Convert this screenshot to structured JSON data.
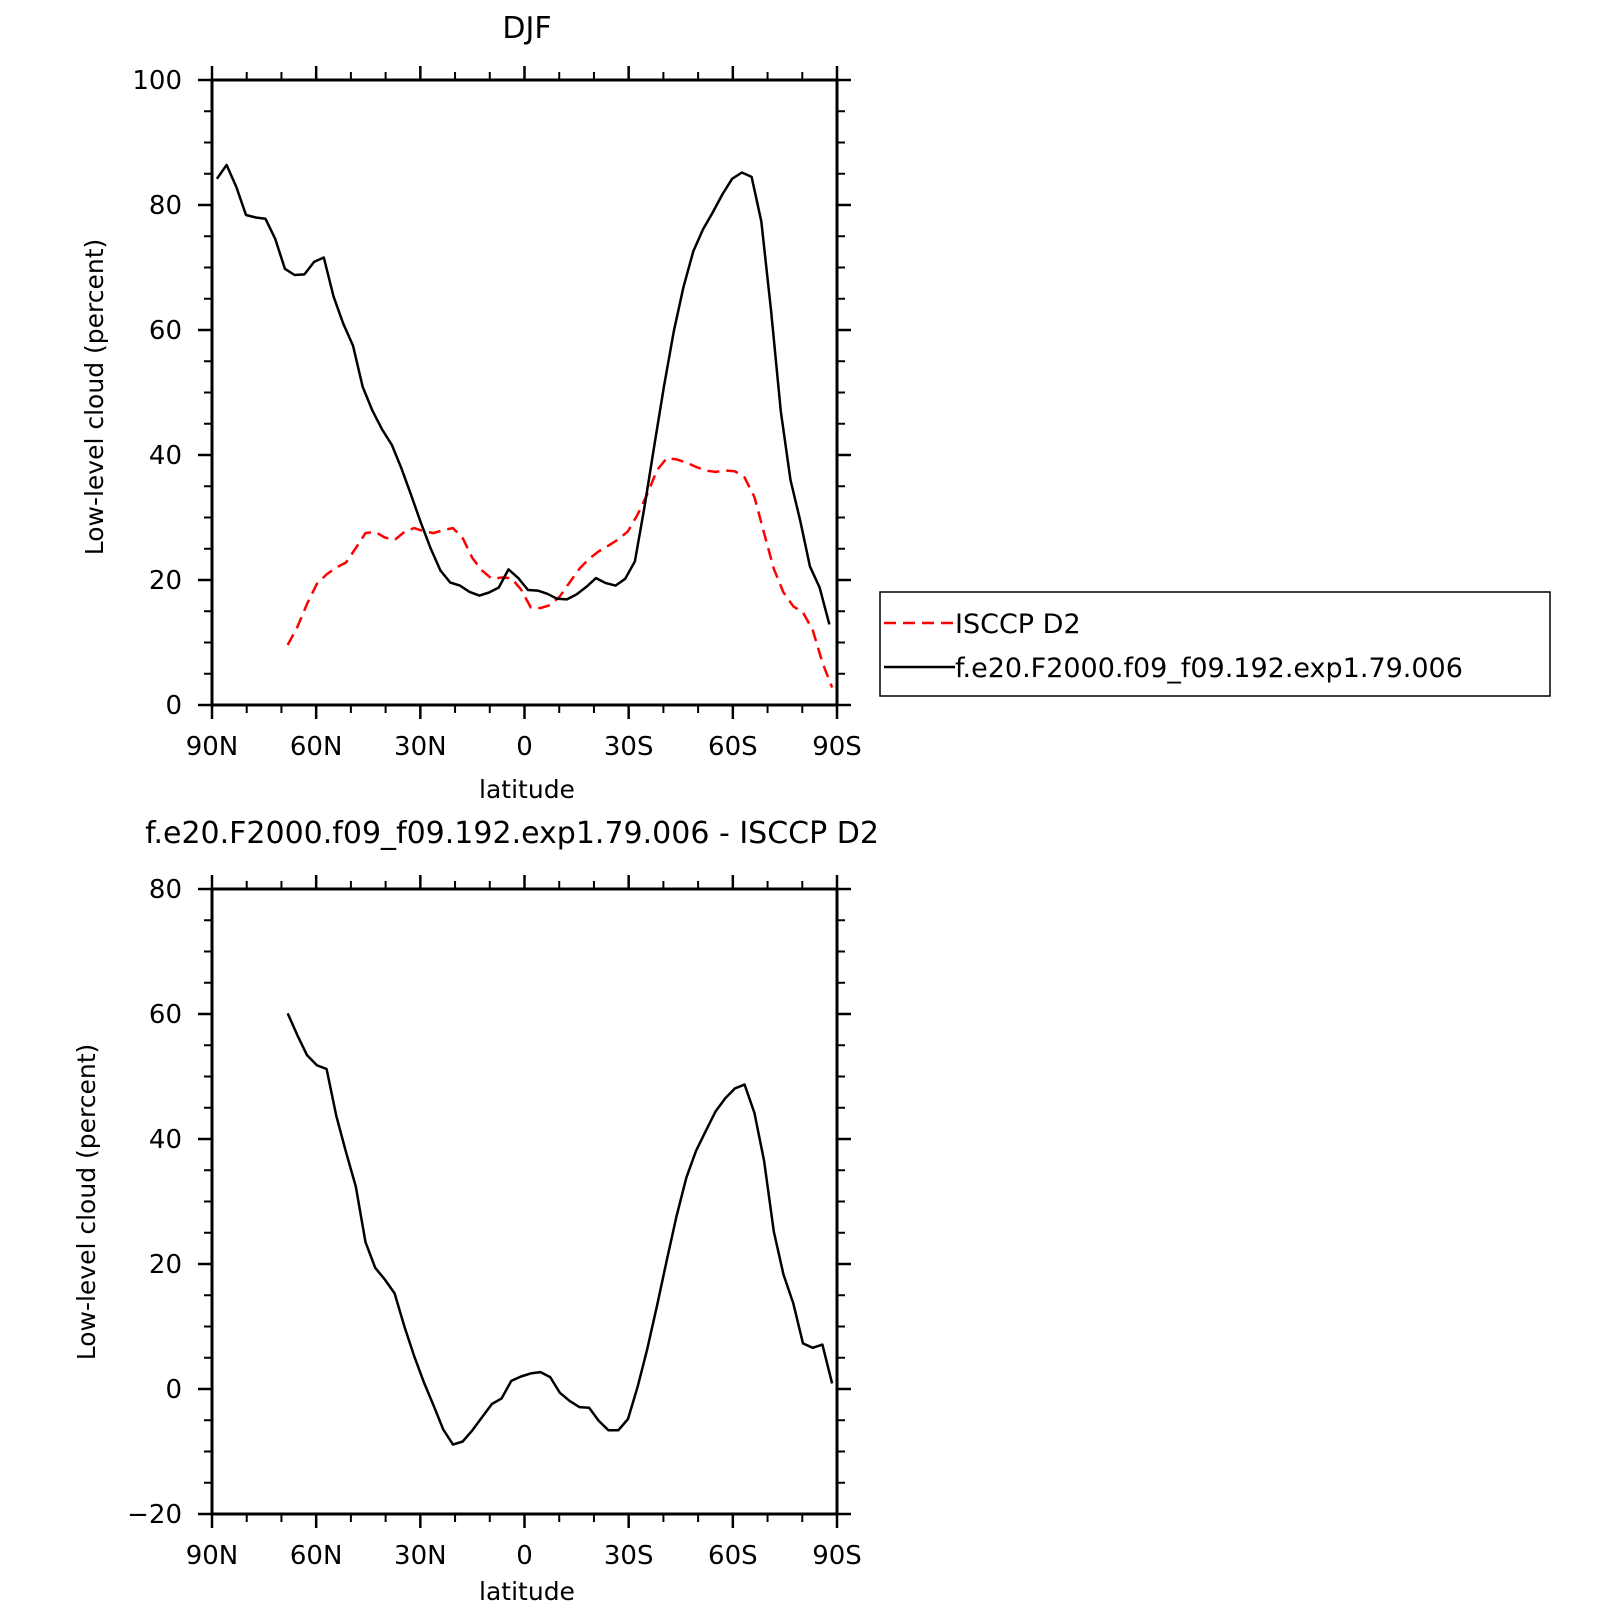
{
  "colors": {
    "background": "#ffffff",
    "axes": "#000000",
    "series_model": "#000000",
    "series_obs": "#ff0000"
  },
  "chart_data": [
    {
      "type": "line",
      "title": "DJF",
      "xlabel": "latitude",
      "ylabel": "Low-level cloud (percent)",
      "xlim": [
        90,
        -90
      ],
      "ylim": [
        0,
        100
      ],
      "x_ticks": [
        {
          "value": 90,
          "label": "90N"
        },
        {
          "value": 60,
          "label": "60N"
        },
        {
          "value": 30,
          "label": "30N"
        },
        {
          "value": 0,
          "label": "0"
        },
        {
          "value": -30,
          "label": "30S"
        },
        {
          "value": -60,
          "label": "60S"
        },
        {
          "value": -90,
          "label": "90S"
        }
      ],
      "y_ticks": [
        {
          "value": 0,
          "label": "0"
        },
        {
          "value": 20,
          "label": "20"
        },
        {
          "value": 40,
          "label": "40"
        },
        {
          "value": 60,
          "label": "60"
        },
        {
          "value": 80,
          "label": "80"
        },
        {
          "value": 100,
          "label": "100"
        }
      ],
      "legend": {
        "placement": "outside-right"
      },
      "series": [
        {
          "name": "ISCCP D2",
          "style": "dashed",
          "color": "#ff0000",
          "x": [
            68.2,
            65.4,
            62.6,
            59.8,
            57.0,
            54.2,
            51.4,
            48.6,
            45.8,
            43.0,
            40.2,
            37.4,
            34.6,
            31.8,
            29.0,
            26.2,
            23.4,
            20.6,
            17.8,
            15.0,
            12.2,
            9.4,
            6.6,
            3.8,
            1.0,
            -1.8,
            -4.6,
            -7.4,
            -10.2,
            -13.0,
            -15.8,
            -18.6,
            -21.4,
            -24.2,
            -27.0,
            -29.8,
            -32.6,
            -35.4,
            -38.2,
            -41.0,
            -43.8,
            -46.6,
            -49.4,
            -52.2,
            -55.0,
            -57.8,
            -60.6,
            -63.4,
            -66.2,
            -69.0,
            -71.8,
            -74.6,
            -77.4,
            -80.2,
            -83.0,
            -85.8,
            -88.6
          ],
          "y": [
            9.6,
            12.5,
            16.2,
            19.4,
            20.9,
            22.0,
            22.8,
            25.1,
            27.5,
            27.7,
            26.8,
            26.4,
            27.7,
            28.3,
            27.8,
            27.5,
            28.0,
            28.3,
            26.7,
            23.5,
            21.5,
            20.2,
            20.4,
            20.3,
            18.5,
            15.6,
            15.5,
            16.0,
            17.4,
            19.6,
            21.8,
            23.4,
            24.6,
            25.5,
            26.5,
            27.8,
            30.5,
            33.8,
            37.6,
            39.5,
            39.3,
            38.8,
            38.1,
            37.5,
            37.3,
            37.5,
            37.4,
            36.4,
            33.3,
            27.5,
            21.8,
            18.0,
            15.8,
            14.8,
            12.0,
            6.8,
            2.8
          ]
        },
        {
          "name": "f.e20.F2000.f09_f09.192.exp1.79.006",
          "style": "solid",
          "color": "#000000",
          "x": [
            88.6,
            85.8,
            83.0,
            80.2,
            77.4,
            74.6,
            71.8,
            69.0,
            66.2,
            63.4,
            60.6,
            57.8,
            55.0,
            52.2,
            49.4,
            46.6,
            43.8,
            41.0,
            38.2,
            35.4,
            32.6,
            29.8,
            27.0,
            24.2,
            21.4,
            18.6,
            15.8,
            13.0,
            10.2,
            7.4,
            4.6,
            1.8,
            -1.0,
            -3.8,
            -6.6,
            -9.4,
            -12.2,
            -15.0,
            -17.8,
            -20.6,
            -23.4,
            -26.2,
            -29.0,
            -31.8,
            -34.6,
            -37.4,
            -40.2,
            -43.0,
            -45.8,
            -48.6,
            -51.4,
            -54.2,
            -57.0,
            -59.8,
            -62.6,
            -65.4,
            -68.2,
            -71.0,
            -73.8,
            -76.6,
            -79.4,
            -82.2,
            -85.0,
            -87.8
          ],
          "y": [
            84.2,
            86.4,
            82.9,
            78.4,
            78.0,
            77.8,
            74.6,
            69.8,
            68.8,
            68.9,
            70.9,
            71.6,
            65.4,
            61.0,
            57.5,
            50.9,
            47.1,
            44.1,
            41.6,
            37.8,
            33.5,
            29.1,
            25.0,
            21.5,
            19.6,
            19.1,
            18.1,
            17.5,
            18.0,
            18.8,
            21.7,
            20.3,
            18.4,
            18.3,
            17.8,
            17.0,
            16.9,
            17.7,
            18.9,
            20.3,
            19.5,
            19.1,
            20.2,
            23.0,
            31.8,
            41.6,
            51.1,
            59.8,
            66.9,
            72.6,
            76.1,
            78.8,
            81.7,
            84.2,
            85.2,
            84.5,
            77.4,
            63.2,
            47.0,
            36.0,
            29.5,
            22.2,
            18.8,
            12.9
          ]
        }
      ]
    },
    {
      "type": "line",
      "title": "f.e20.F2000.f09_f09.192.exp1.79.006 - ISCCP D2",
      "xlabel": "latitude",
      "ylabel": "Low-level cloud (percent)",
      "xlim": [
        90,
        -90
      ],
      "ylim": [
        -20,
        80
      ],
      "x_ticks": [
        {
          "value": 90,
          "label": "90N"
        },
        {
          "value": 60,
          "label": "60N"
        },
        {
          "value": 30,
          "label": "30N"
        },
        {
          "value": 0,
          "label": "0"
        },
        {
          "value": -30,
          "label": "30S"
        },
        {
          "value": -60,
          "label": "60S"
        },
        {
          "value": -90,
          "label": "90S"
        }
      ],
      "y_ticks": [
        {
          "value": -20,
          "label": "−20"
        },
        {
          "value": 0,
          "label": "0"
        },
        {
          "value": 20,
          "label": "20"
        },
        {
          "value": 40,
          "label": "40"
        },
        {
          "value": 60,
          "label": "60"
        },
        {
          "value": 80,
          "label": "80"
        }
      ],
      "series": [
        {
          "style": "solid",
          "color": "#000000",
          "x": [
            68.2,
            65.4,
            62.6,
            59.8,
            57.0,
            54.2,
            51.4,
            48.6,
            45.8,
            43.0,
            40.2,
            37.4,
            34.6,
            31.8,
            29.0,
            26.2,
            23.4,
            20.6,
            17.8,
            15.0,
            12.2,
            9.4,
            6.6,
            3.8,
            1.0,
            -1.8,
            -4.6,
            -7.4,
            -10.2,
            -13.0,
            -15.8,
            -18.6,
            -21.4,
            -24.2,
            -27.0,
            -29.8,
            -32.6,
            -35.4,
            -38.2,
            -41.0,
            -43.8,
            -46.6,
            -49.4,
            -52.2,
            -55.0,
            -57.8,
            -60.6,
            -63.4,
            -66.2,
            -69.0,
            -71.8,
            -74.6,
            -77.4,
            -80.2,
            -83.0,
            -85.8,
            -88.6
          ],
          "y": [
            60.1,
            56.6,
            53.4,
            51.8,
            51.2,
            43.7,
            37.9,
            32.4,
            23.5,
            19.4,
            17.5,
            15.3,
            10.0,
            5.3,
            1.1,
            -2.6,
            -6.5,
            -8.9,
            -8.4,
            -6.6,
            -4.5,
            -2.4,
            -1.5,
            1.3,
            2.0,
            2.5,
            2.7,
            1.9,
            -0.6,
            -1.9,
            -2.9,
            -3.0,
            -5.1,
            -6.6,
            -6.6,
            -4.8,
            0.4,
            6.5,
            13.4,
            20.7,
            27.7,
            33.8,
            38.1,
            41.3,
            44.4,
            46.5,
            48.1,
            48.7,
            44.2,
            36.5,
            25.2,
            18.3,
            13.7,
            7.3,
            6.6,
            7.1,
            0.9
          ]
        }
      ]
    }
  ],
  "legend": {
    "items": [
      {
        "label": "ISCCP D2",
        "style": "dashed",
        "color": "#ff0000"
      },
      {
        "label": "f.e20.F2000.f09_f09.192.exp1.79.006",
        "style": "solid",
        "color": "#000000"
      }
    ]
  }
}
